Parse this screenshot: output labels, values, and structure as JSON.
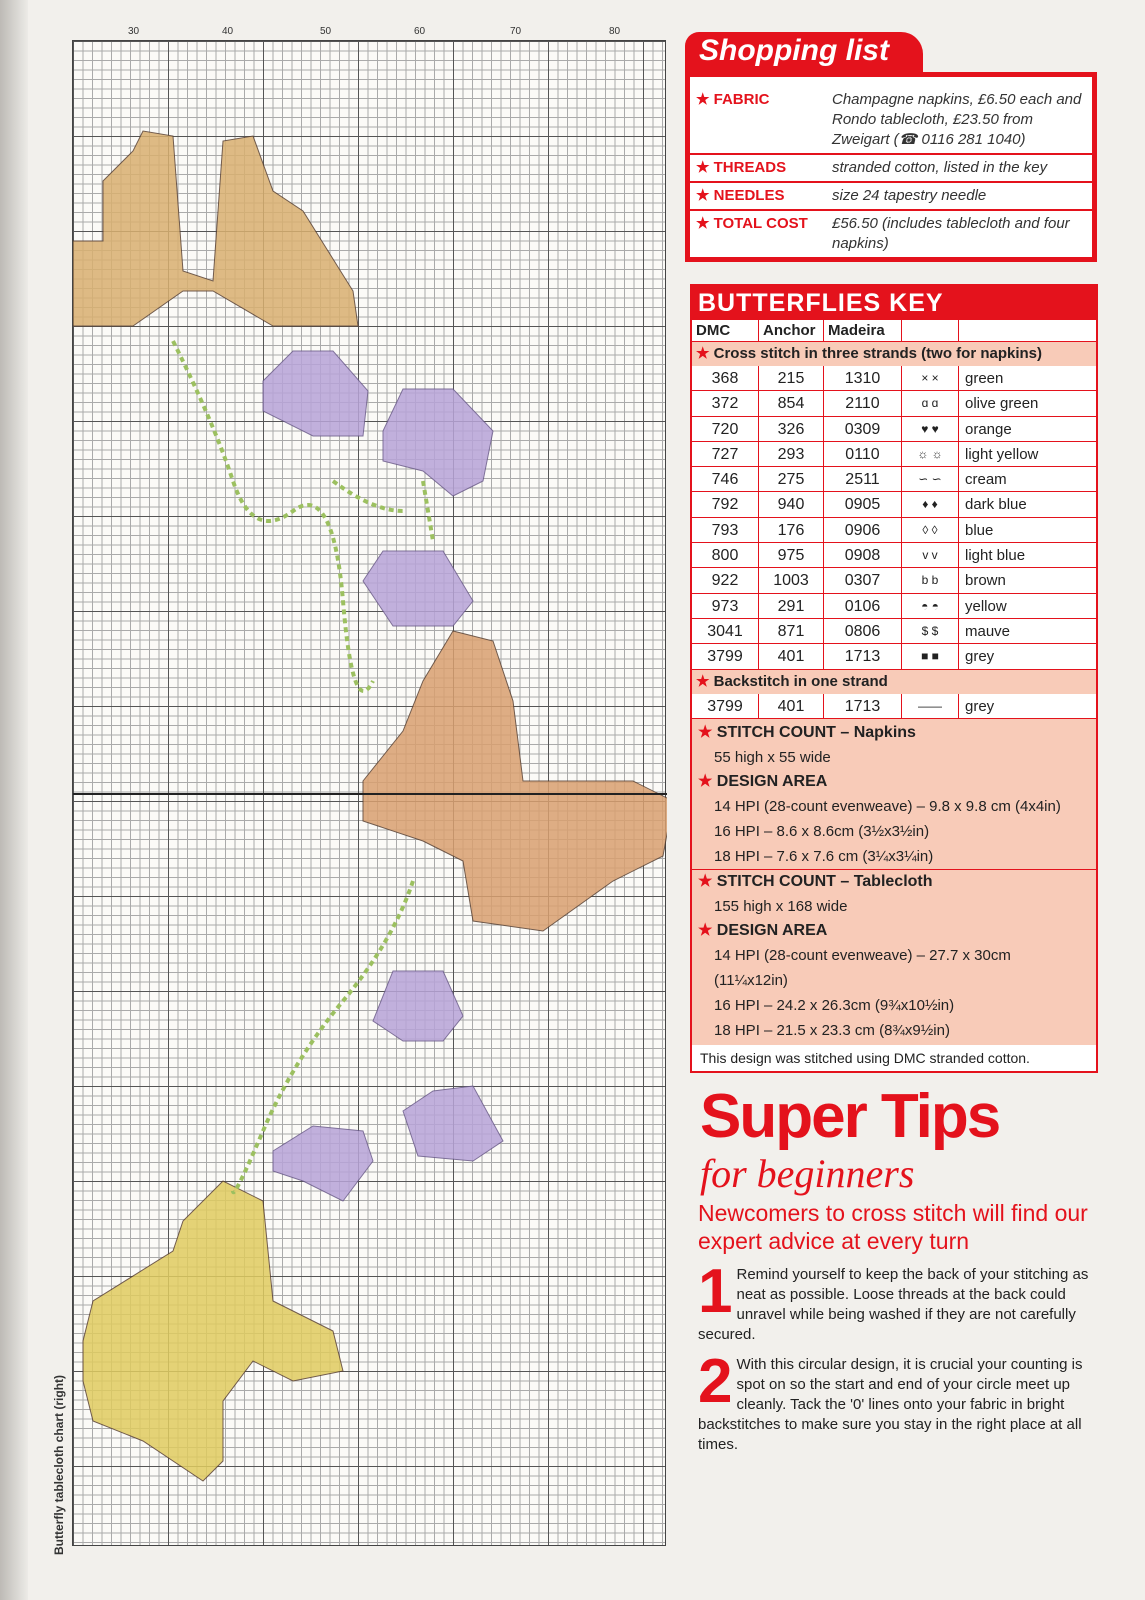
{
  "chart": {
    "caption": "Butterfly tablecloth chart (right)",
    "column_numbers": [
      "30",
      "40",
      "50",
      "60",
      "70",
      "80"
    ]
  },
  "shopping_list": {
    "title": "Shopping list",
    "items": [
      {
        "label": "★ FABRIC",
        "value": "Champagne napkins, £6.50 each and Rondo tablecloth, £23.50 from Zweigart (☎ 0116 281 1040)"
      },
      {
        "label": "★ THREADS",
        "value": "stranded cotton, listed in the key"
      },
      {
        "label": "★ NEEDLES",
        "value": "size 24 tapestry needle"
      },
      {
        "label": "★ TOTAL COST",
        "value": "£56.50 (includes tablecloth and four napkins)"
      }
    ]
  },
  "key": {
    "title": "BUTTERFLIES KEY",
    "headers": [
      "DMC",
      "Anchor",
      "Madeira"
    ],
    "cross_stitch_heading": "Cross stitch in three strands (two for napkins)",
    "rows": [
      {
        "dmc": "368",
        "anchor": "215",
        "madeira": "1310",
        "symbol": "×  ×",
        "name": "green"
      },
      {
        "dmc": "372",
        "anchor": "854",
        "madeira": "2110",
        "symbol": "ɑ  ɑ",
        "name": "olive green"
      },
      {
        "dmc": "720",
        "anchor": "326",
        "madeira": "0309",
        "symbol": "♥  ♥",
        "name": "orange"
      },
      {
        "dmc": "727",
        "anchor": "293",
        "madeira": "0110",
        "symbol": "☼  ☼",
        "name": "light yellow"
      },
      {
        "dmc": "746",
        "anchor": "275",
        "madeira": "2511",
        "symbol": "∽  ∽",
        "name": "cream"
      },
      {
        "dmc": "792",
        "anchor": "940",
        "madeira": "0905",
        "symbol": "♦  ♦",
        "name": "dark blue"
      },
      {
        "dmc": "793",
        "anchor": "176",
        "madeira": "0906",
        "symbol": "◊  ◊",
        "name": "blue"
      },
      {
        "dmc": "800",
        "anchor": "975",
        "madeira": "0908",
        "symbol": "v  v",
        "name": "light blue"
      },
      {
        "dmc": "922",
        "anchor": "1003",
        "madeira": "0307",
        "symbol": "b  b",
        "name": "brown"
      },
      {
        "dmc": "973",
        "anchor": "291",
        "madeira": "0106",
        "symbol": "◓  ◓",
        "name": "yellow"
      },
      {
        "dmc": "3041",
        "anchor": "871",
        "madeira": "0806",
        "symbol": "$  $",
        "name": "mauve"
      },
      {
        "dmc": "3799",
        "anchor": "401",
        "madeira": "1713",
        "symbol": "■  ■",
        "name": "grey"
      }
    ],
    "backstitch_heading": "Backstitch in one strand",
    "backstitch_row": {
      "dmc": "3799",
      "anchor": "401",
      "madeira": "1713",
      "symbol": "——",
      "name": "grey"
    },
    "napkins": {
      "stitch_count_heading": "STITCH COUNT – Napkins",
      "stitch_count": "55 high x 55 wide",
      "design_area_heading": "DESIGN AREA",
      "l1": "14 HPI (28-count evenweave) – 9.8 x 9.8 cm (4x4in)",
      "l2": "16 HPI – 8.6 x 8.6cm (3½x3½in)",
      "l3": "18 HPI – 7.6 x 7.6 cm (3¼x3¼in)"
    },
    "tablecloth": {
      "stitch_count_heading": "STITCH COUNT – Tablecloth",
      "stitch_count": "155 high x 168 wide",
      "design_area_heading": "DESIGN AREA",
      "l1": "14 HPI (28-count evenweave) – 27.7 x 30cm",
      "l1b": "(11¼x12in)",
      "l2": "16 HPI – 24.2 x 26.3cm (9¾x10½in)",
      "l3": "18 HPI – 21.5 x 23.3 cm (8¾x9½in)"
    },
    "note": "This design was stitched using DMC stranded cotton."
  },
  "tips": {
    "title": "Super Tips",
    "subtitle": "for beginners",
    "intro": "Newcomers to cross stitch will find our expert advice at every turn",
    "items": [
      {
        "num": "1",
        "text": "Remind yourself to keep the back of your stitching as neat as possible. Loose threads at the back could unravel while being washed if they are not carefully secured."
      },
      {
        "num": "2",
        "text": "With this circular design, it is crucial your counting is spot on so the start and end of your circle meet up cleanly. Tack the '0' lines onto your fabric in bright backstitches to make sure you stay in the right place at all times."
      }
    ]
  },
  "colors": {
    "accent": "#e4121c",
    "key_fill": "#f8cbb8",
    "butterfly_orange": "#d9a070",
    "butterfly_yellow": "#e0cc60",
    "butterfly_purple": "#a894cc",
    "vine_green": "#9cc060"
  }
}
